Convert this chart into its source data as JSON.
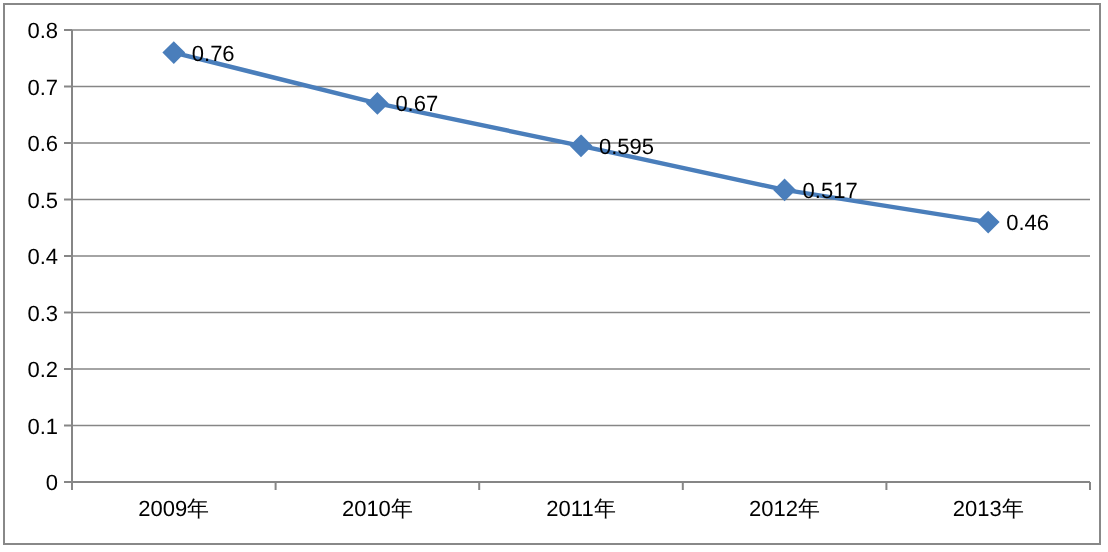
{
  "chart_data": {
    "type": "line",
    "categories": [
      "2009年",
      "2010年",
      "2011年",
      "2012年",
      "2013年"
    ],
    "series": [
      {
        "color": "#4a7ebb",
        "values": [
          0.76,
          0.67,
          0.595,
          0.517,
          0.46
        ]
      }
    ],
    "ylim": [
      0,
      0.8
    ],
    "yticks": [
      0,
      0.1,
      0.2,
      0.3,
      0.4,
      0.5,
      0.6,
      0.7,
      0.8
    ],
    "grid": "y",
    "marker": "diamond",
    "data_labels": true
  }
}
